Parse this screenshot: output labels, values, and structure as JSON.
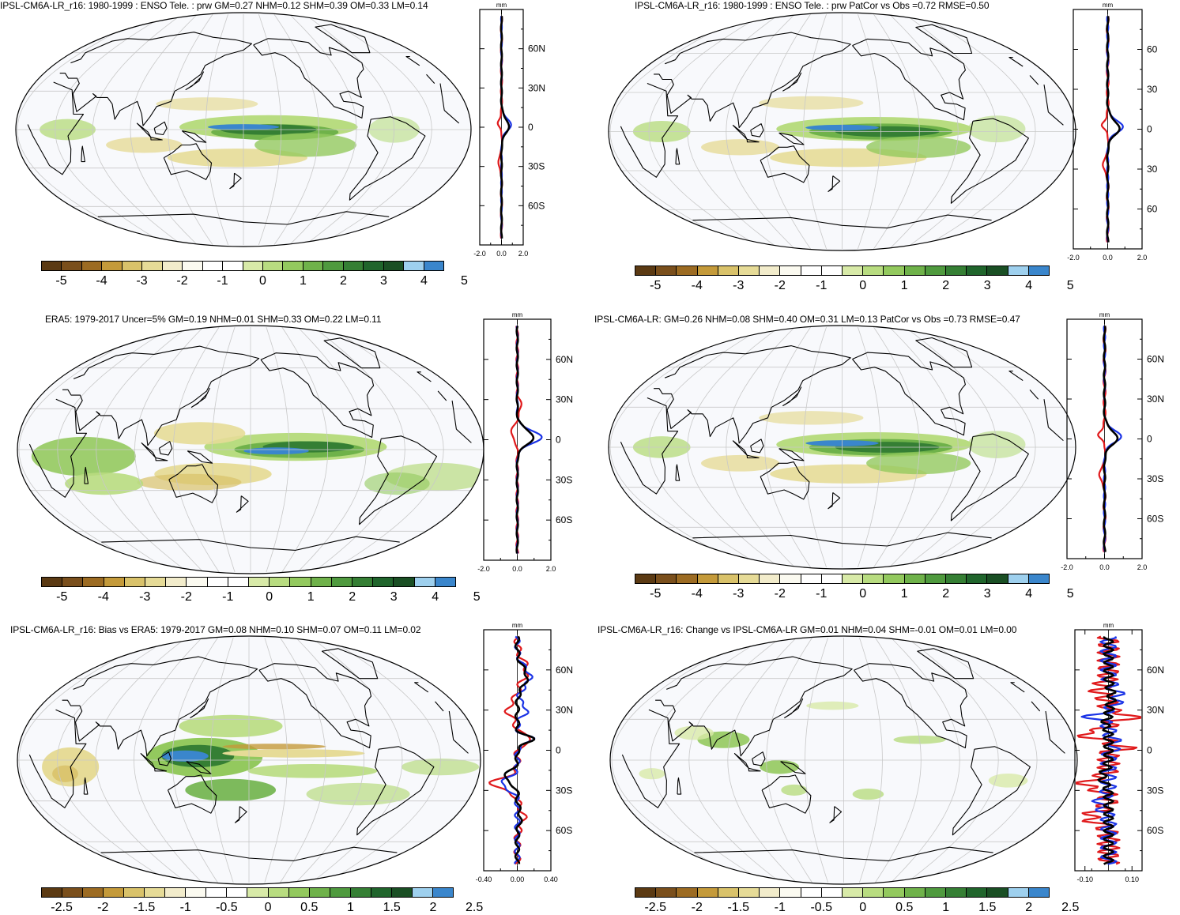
{
  "panels": [
    {
      "id": "p1",
      "title": "IPSL-CM6A-LR_r16: 1980-1999 : ENSO Tele. : prw GM=0.27 NHM=0.12 SHM=0.39 OM=0.33 LM=0.14",
      "colorbar_labels": [
        "-5",
        "-4",
        "-3",
        "-2",
        "-1",
        "0",
        "1",
        "2",
        "3",
        "4",
        "5"
      ],
      "zonal": {
        "unit": "mm",
        "lat_labels": [
          "60N",
          "30N",
          "0",
          "30S",
          "60S"
        ],
        "x_labels": [
          "-2.0",
          "0.0",
          "2.0"
        ]
      }
    },
    {
      "id": "p2",
      "title": "IPSL-CM6A-LR_r16: 1980-1999 : ENSO Tele. : prw PatCor vs Obs =0.72 RMSE=0.50",
      "colorbar_labels": [
        "-5",
        "-4",
        "-3",
        "-2",
        "-1",
        "0",
        "1",
        "2",
        "3",
        "4",
        "5"
      ],
      "zonal": {
        "unit": "mm",
        "lat_labels": [
          "60",
          "30",
          "0",
          "30",
          "60"
        ],
        "x_labels": [
          "-2.0",
          "0.0",
          "2.0"
        ]
      }
    },
    {
      "id": "p3",
      "title": "ERA5: 1979-2017 Uncer=5% GM=0.19 NHM=0.01 SHM=0.33 OM=0.22 LM=0.11",
      "colorbar_labels": [
        "-5",
        "-4",
        "-3",
        "-2",
        "-1",
        "0",
        "1",
        "2",
        "3",
        "4",
        "5"
      ],
      "zonal": {
        "unit": "mm",
        "lat_labels": [
          "60N",
          "30N",
          "0",
          "30S",
          "60S"
        ],
        "x_labels": [
          "-2.0",
          "0.0",
          "2.0"
        ]
      }
    },
    {
      "id": "p4",
      "title": "IPSL-CM6A-LR: GM=0.26 NHM=0.08 SHM=0.40 OM=0.31 LM=0.13 PatCor vs Obs =0.73 RMSE=0.47",
      "colorbar_labels": [
        "-5",
        "-4",
        "-3",
        "-2",
        "-1",
        "0",
        "1",
        "2",
        "3",
        "4",
        "5"
      ],
      "zonal": {
        "unit": "mm",
        "lat_labels": [
          "60N",
          "30N",
          "0",
          "30S",
          "60S"
        ],
        "x_labels": [
          "-2.0",
          "0.0",
          "2.0"
        ]
      }
    },
    {
      "id": "p5",
      "title": "IPSL-CM6A-LR_r16: Bias vs ERA5: 1979-2017 GM=0.08 NHM=0.10 SHM=0.07 OM=0.11 LM=0.02",
      "colorbar_labels": [
        "-2.5",
        "-2",
        "-1.5",
        "-1",
        "-0.5",
        "0",
        "0.5",
        "1",
        "1.5",
        "2",
        "2.5"
      ],
      "zonal": {
        "unit": "mm",
        "lat_labels": [
          "60N",
          "30N",
          "0",
          "30S",
          "60S"
        ],
        "x_labels": [
          "-0.40",
          "0.00",
          "0.40"
        ]
      }
    },
    {
      "id": "p6",
      "title": "IPSL-CM6A-LR_r16: Change vs IPSL-CM6A-LR GM=0.01 NHM=0.04 SHM=-0.01 OM=0.01 LM=0.00",
      "colorbar_labels": [
        "-2.5",
        "-2",
        "-1.5",
        "-1",
        "-0.5",
        "0",
        "0.5",
        "1",
        "1.5",
        "2",
        "2.5"
      ],
      "zonal": {
        "unit": "mm",
        "lat_labels": [
          "60N",
          "30N",
          "0",
          "30S",
          "60S"
        ],
        "x_labels": [
          "-0.10",
          "0.10"
        ]
      }
    }
  ],
  "colors": {
    "colorbar": [
      "#5b3a13",
      "#7a4f1c",
      "#9c6b22",
      "#c49a3a",
      "#d9c26a",
      "#e6db97",
      "#f2eccb",
      "#fbfaf0",
      "#ffffff",
      "#ffffff",
      "#d8eaa8",
      "#b8dc80",
      "#93c95e",
      "#6fb24a",
      "#4f9a3e",
      "#357f34",
      "#20652c",
      "#1a4f24",
      "#9ed0ee",
      "#3a86cc"
    ],
    "land_outline": "#000000",
    "ocean_bg": "#f8f9fc",
    "graticule": "#c8c8c8",
    "curve_model": "#e0191b",
    "curve_obs": "#1a33e6",
    "curve_mean": "#000000"
  }
}
